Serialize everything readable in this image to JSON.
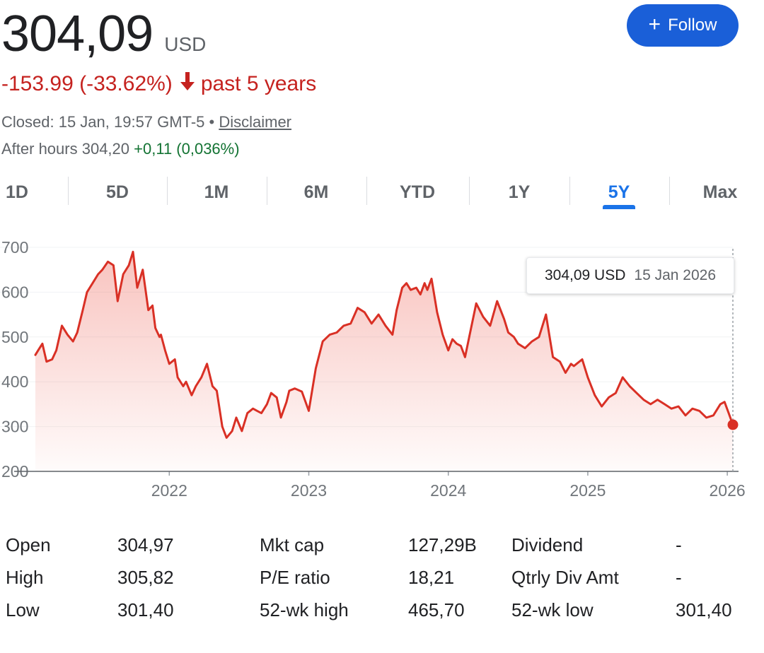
{
  "header": {
    "price": "304,09",
    "currency": "USD",
    "follow_label": "Follow",
    "change_value": "-153.99 (-33.62%)",
    "change_period": "past 5 years",
    "closed_text": "Closed: 15 Jan, 19:57 GMT-5 •",
    "disclaimer": "Disclaimer",
    "after_hours_label": "After hours 304,20",
    "after_hours_change": "+0,11 (0,036%)"
  },
  "tabs": [
    "1D",
    "5D",
    "1M",
    "6M",
    "YTD",
    "1Y",
    "5Y",
    "Max"
  ],
  "active_tab": "5Y",
  "tooltip": {
    "value": "304,09 USD",
    "date": "15 Jan 2026"
  },
  "colors": {
    "line": "#d93025",
    "negative": "#c5221f",
    "positive": "#137333",
    "accent": "#1a73e8",
    "follow": "#1a5fd8"
  },
  "chart_data": {
    "type": "area",
    "x_ticks": [
      "2022",
      "2023",
      "2024",
      "2025",
      "2026"
    ],
    "y_ticks": [
      "700",
      "600",
      "500",
      "400",
      "300",
      "200"
    ],
    "ylim": [
      200,
      700
    ],
    "xlim": [
      2021.04,
      2026.04
    ],
    "current_point": {
      "x": 2026.04,
      "y": 304.09
    },
    "series": [
      {
        "x": [
          2021.04,
          2021.06,
          2021.09,
          2021.12,
          2021.16,
          2021.19,
          2021.23,
          2021.27,
          2021.31,
          2021.34,
          2021.38,
          2021.41,
          2021.45,
          2021.49,
          2021.52,
          2021.56,
          2021.6,
          2021.63,
          2021.67,
          2021.71,
          2021.74,
          2021.77,
          2021.81,
          2021.85,
          2021.88,
          2021.9,
          2021.93,
          2021.94,
          2021.97,
          2022.0,
          2022.04,
          2022.06,
          2022.1,
          2022.12,
          2022.16,
          2022.19,
          2022.23,
          2022.27,
          2022.31,
          2022.34,
          2022.38,
          2022.41,
          2022.45,
          2022.48,
          2022.52,
          2022.56,
          2022.6,
          2022.63,
          2022.66,
          2022.7,
          2022.73,
          2022.77,
          2022.8,
          2022.84,
          2022.86,
          2022.9,
          2022.95,
          2023.0,
          2023.05,
          2023.1,
          2023.15,
          2023.2,
          2023.25,
          2023.3,
          2023.35,
          2023.4,
          2023.45,
          2023.5,
          2023.55,
          2023.6,
          2023.63,
          2023.67,
          2023.7,
          2023.73,
          2023.77,
          2023.8,
          2023.83,
          2023.85,
          2023.88,
          2023.92,
          2023.96,
          2024.0,
          2024.03,
          2024.06,
          2024.09,
          2024.12,
          2024.15,
          2024.2,
          2024.25,
          2024.3,
          2024.35,
          2024.4,
          2024.43,
          2024.47,
          2024.5,
          2024.55,
          2024.6,
          2024.65,
          2024.7,
          2024.75,
          2024.8,
          2024.84,
          2024.88,
          2024.9,
          2024.92,
          2024.96,
          2025.0,
          2025.05,
          2025.1,
          2025.15,
          2025.2,
          2025.25,
          2025.3,
          2025.35,
          2025.4,
          2025.45,
          2025.5,
          2025.55,
          2025.6,
          2025.65,
          2025.7,
          2025.75,
          2025.8,
          2025.85,
          2025.9,
          2025.95,
          2025.98,
          2026.01,
          2026.04
        ],
        "y": [
          460,
          470,
          485,
          445,
          450,
          470,
          525,
          505,
          490,
          510,
          560,
          600,
          620,
          640,
          650,
          668,
          660,
          580,
          640,
          660,
          690,
          610,
          650,
          560,
          570,
          520,
          500,
          505,
          470,
          440,
          450,
          410,
          390,
          400,
          370,
          390,
          410,
          440,
          390,
          380,
          300,
          275,
          290,
          320,
          290,
          330,
          340,
          335,
          330,
          350,
          375,
          365,
          320,
          355,
          380,
          385,
          378,
          335,
          430,
          490,
          505,
          510,
          525,
          530,
          565,
          555,
          530,
          550,
          525,
          505,
          560,
          610,
          620,
          605,
          610,
          595,
          620,
          605,
          630,
          555,
          505,
          470,
          495,
          485,
          480,
          455,
          500,
          575,
          545,
          525,
          580,
          540,
          510,
          500,
          485,
          475,
          490,
          500,
          550,
          455,
          445,
          420,
          440,
          435,
          440,
          450,
          410,
          370,
          345,
          365,
          375,
          410,
          390,
          375,
          360,
          350,
          360,
          350,
          340,
          345,
          325,
          340,
          335,
          320,
          325,
          350,
          355,
          330,
          304.09
        ]
      }
    ]
  },
  "stats": [
    [
      {
        "label": "Open",
        "value": "304,97"
      },
      {
        "label": "Mkt cap",
        "value": "127,29B"
      },
      {
        "label": "Dividend",
        "value": "-"
      }
    ],
    [
      {
        "label": "High",
        "value": "305,82"
      },
      {
        "label": "P/E ratio",
        "value": "18,21"
      },
      {
        "label": "Qtrly Div Amt",
        "value": "-"
      }
    ],
    [
      {
        "label": "Low",
        "value": "301,40"
      },
      {
        "label": "52-wk high",
        "value": "465,70"
      },
      {
        "label": "52-wk low",
        "value": "301,40"
      }
    ]
  ]
}
